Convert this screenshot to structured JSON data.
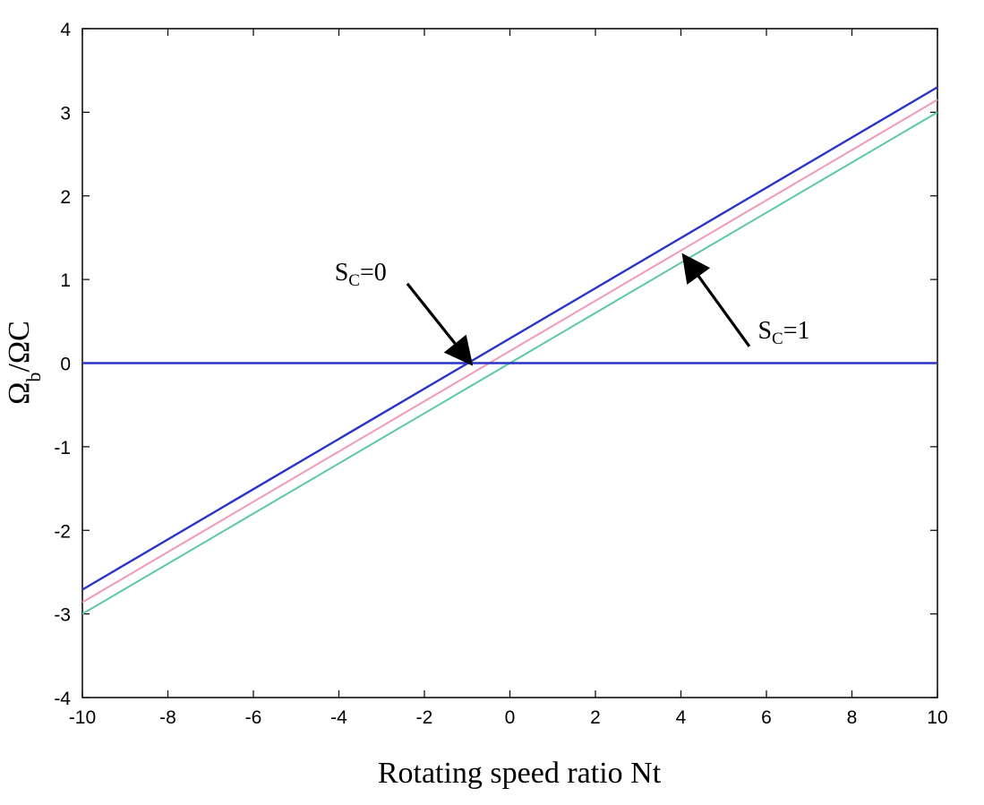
{
  "chart_data": {
    "type": "line",
    "xlabel": "Rotating speed ratio Nt",
    "ylabel": {
      "prefix": "Ω",
      "sub": "b",
      "suffix": "/ΩC"
    },
    "xlim": [
      -10,
      10
    ],
    "ylim": [
      -4,
      4
    ],
    "x_ticks": [
      -10,
      -8,
      -6,
      -4,
      -2,
      0,
      2,
      4,
      6,
      8,
      10
    ],
    "y_ticks": [
      -4,
      -3,
      -2,
      -1,
      0,
      1,
      2,
      3,
      4
    ],
    "series": [
      {
        "name": "S_C=0",
        "color": "#2a35c8",
        "points": [
          [
            -10,
            -2.71
          ],
          [
            10,
            3.3
          ]
        ]
      },
      {
        "name": "intermediate",
        "color": "#f29ab6",
        "points": [
          [
            -10,
            -2.86
          ],
          [
            10,
            3.15
          ]
        ]
      },
      {
        "name": "S_C=1",
        "color": "#5cc9a0",
        "points": [
          [
            -10,
            -3.0
          ],
          [
            10,
            3.0
          ]
        ]
      },
      {
        "name": "zero-line",
        "color": "#2a35c8",
        "points": [
          [
            -10,
            0
          ],
          [
            10,
            0
          ]
        ]
      }
    ],
    "annotations": [
      {
        "label_main": "S",
        "label_sub": "C",
        "label_tail": "=0",
        "text_at": [
          -4.1,
          1.1
        ],
        "arrow_from": [
          -2.4,
          0.95
        ],
        "arrow_to": [
          -0.95,
          0.02
        ]
      },
      {
        "label_main": "S",
        "label_sub": "C",
        "label_tail": "=1",
        "text_at": [
          5.8,
          0.4
        ],
        "arrow_from": [
          5.6,
          0.2
        ],
        "arrow_to": [
          4.1,
          1.26
        ]
      }
    ]
  }
}
